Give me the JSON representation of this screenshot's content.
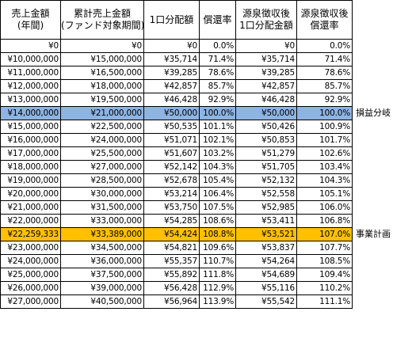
{
  "headers": [
    [
      "売上金額",
      "(年間)"
    ],
    [
      "累計売上金額",
      "(ファンド対象期間)"
    ],
    [
      "1口分配額"
    ],
    [
      "償還率"
    ],
    [
      "源泉徴収後",
      "1口分配金額"
    ],
    [
      "源泉徴収後",
      "償還率"
    ]
  ],
  "rows": [
    [
      "¥0",
      "¥0",
      "¥0",
      "0.0%",
      "¥0",
      "0.0%"
    ],
    [
      "¥10,000,000",
      "¥15,000,000",
      "¥35,714",
      "71.4%",
      "¥35,714",
      "71.4%"
    ],
    [
      "¥11,000,000",
      "¥16,500,000",
      "¥39,285",
      "78.6%",
      "¥39,285",
      "78.6%"
    ],
    [
      "¥12,000,000",
      "¥18,000,000",
      "¥42,857",
      "85.7%",
      "¥42,857",
      "85.7%"
    ],
    [
      "¥13,000,000",
      "¥19,500,000",
      "¥46,428",
      "92.9%",
      "¥46,428",
      "92.9%"
    ],
    [
      "¥14,000,000",
      "¥21,000,000",
      "¥50,000",
      "100.0%",
      "¥50,000",
      "100.0%"
    ],
    [
      "¥15,000,000",
      "¥22,500,000",
      "¥50,535",
      "101.1%",
      "¥50,426",
      "100.9%"
    ],
    [
      "¥16,000,000",
      "¥24,000,000",
      "¥51,071",
      "102.1%",
      "¥50,853",
      "101.7%"
    ],
    [
      "¥17,000,000",
      "¥25,500,000",
      "¥51,607",
      "103.2%",
      "¥51,279",
      "102.6%"
    ],
    [
      "¥18,000,000",
      "¥27,000,000",
      "¥52,142",
      "104.3%",
      "¥51,705",
      "103.4%"
    ],
    [
      "¥19,000,000",
      "¥28,500,000",
      "¥52,678",
      "105.4%",
      "¥52,132",
      "104.3%"
    ],
    [
      "¥20,000,000",
      "¥30,000,000",
      "¥53,214",
      "106.4%",
      "¥52,558",
      "105.1%"
    ],
    [
      "¥21,000,000",
      "¥31,500,000",
      "¥53,750",
      "107.5%",
      "¥52,985",
      "106.0%"
    ],
    [
      "¥22,000,000",
      "¥33,000,000",
      "¥54,285",
      "108.6%",
      "¥53,411",
      "106.8%"
    ],
    [
      "¥22,259,333",
      "¥33,389,000",
      "¥54,424",
      "108.8%",
      "¥53,521",
      "107.0%"
    ],
    [
      "¥23,000,000",
      "¥34,500,000",
      "¥54,821",
      "109.6%",
      "¥53,837",
      "107.7%"
    ],
    [
      "¥24,000,000",
      "¥36,000,000",
      "¥55,357",
      "110.7%",
      "¥54,264",
      "108.5%"
    ],
    [
      "¥25,000,000",
      "¥37,500,000",
      "¥55,892",
      "111.8%",
      "¥54,689",
      "109.4%"
    ],
    [
      "¥26,000,000",
      "¥39,000,000",
      "¥56,428",
      "112.9%",
      "¥55,116",
      "110.2%"
    ],
    [
      "¥27,000,000",
      "¥40,500,000",
      "¥56,964",
      "113.9%",
      "¥55,542",
      "111.1%"
    ]
  ],
  "highlights": [
    {
      "row": 5,
      "class": "hl-blue",
      "label": "損益分岐",
      "color": "#8db4e2"
    },
    {
      "row": 14,
      "class": "hl-orange",
      "label": "事業計画",
      "color": "#ffc000"
    }
  ]
}
